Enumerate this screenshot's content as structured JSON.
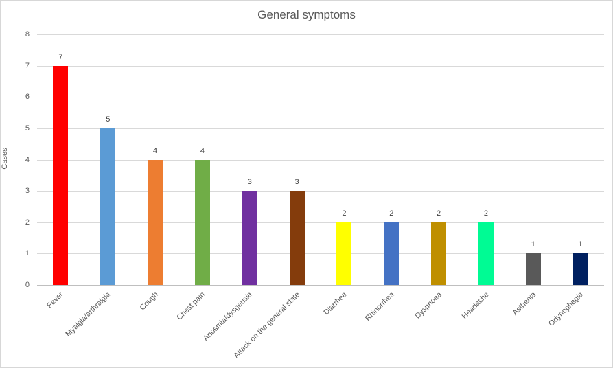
{
  "chart_data": {
    "type": "bar",
    "title": "General symptoms",
    "xlabel": "",
    "ylabel": "Cases",
    "ylim": [
      0,
      8
    ],
    "yticks": [
      0,
      1,
      2,
      3,
      4,
      5,
      6,
      7,
      8
    ],
    "grid": true,
    "legend_position": "none",
    "data_labels_shown": true,
    "categories": [
      "Fever",
      "Myalgia/arthralgia",
      "Cough",
      "Chest pain",
      "Anosmia/dysgeusia",
      "Attack on the general state",
      "Diarrhea",
      "Rhinorrhea",
      "Dyspnoea",
      "Headache",
      "Asthenia",
      "Odynophagia"
    ],
    "values": [
      7,
      5,
      4,
      4,
      3,
      3,
      2,
      2,
      2,
      2,
      1,
      1
    ],
    "bar_colors": [
      "#FF0000",
      "#5B9BD5",
      "#ED7D31",
      "#70AD47",
      "#7030A0",
      "#843C0C",
      "#FFFF00",
      "#4472C4",
      "#BF8F00",
      "#00FB94",
      "#595959",
      "#002060"
    ]
  },
  "colors": {
    "title_text": "#595959",
    "axis_text": "#595959",
    "data_label_text": "#404040",
    "gridline": "#D9D9D9",
    "axis_line": "#BFBFBF",
    "background": "#FFFFFF",
    "chart_border": "#D7D7D7"
  }
}
